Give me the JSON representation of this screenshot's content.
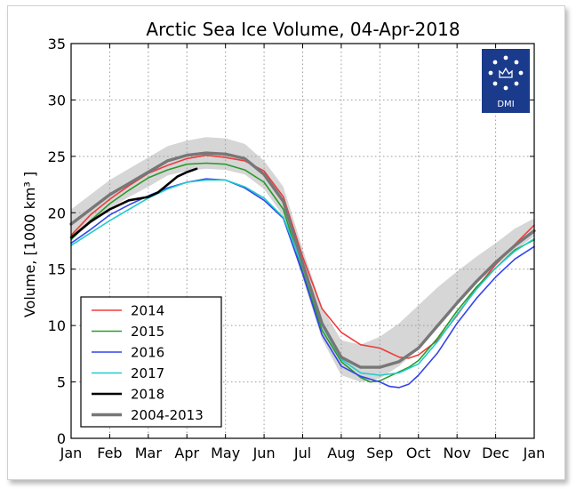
{
  "chart_data": {
    "type": "line",
    "title": "Arctic Sea Ice Volume, 04-Apr-2018",
    "ylabel": "Volume, [1000 km³ ]",
    "xlabel": "",
    "ylim": [
      0,
      35
    ],
    "yticks": [
      0,
      5,
      10,
      15,
      20,
      25,
      30,
      35
    ],
    "xlim": [
      0,
      12
    ],
    "months": [
      "Jan",
      "Feb",
      "Mar",
      "Apr",
      "May",
      "Jun",
      "Jul",
      "Aug",
      "Sep",
      "Oct",
      "Nov",
      "Dec",
      "Jan"
    ],
    "grid": true,
    "legend_position": "bottom-left",
    "logo": {
      "text": "DMI",
      "background": "#1a3a8c"
    },
    "band": {
      "x": [
        0,
        0.5,
        1,
        1.5,
        2,
        2.5,
        3,
        3.5,
        4,
        4.5,
        5,
        5.5,
        6,
        6.5,
        7,
        7.5,
        8,
        8.5,
        9,
        9.5,
        10,
        10.5,
        11,
        11.5,
        12
      ],
      "upper": [
        20.3,
        21.6,
        22.9,
        23.9,
        24.9,
        25.9,
        26.4,
        26.7,
        26.6,
        26.1,
        24.6,
        22.3,
        16.8,
        11.6,
        8.7,
        8.3,
        9.0,
        10.2,
        11.8,
        13.4,
        14.8,
        16.1,
        17.3,
        18.6,
        19.5
      ],
      "lower": [
        17.6,
        19.0,
        20.4,
        21.4,
        22.3,
        23.3,
        23.7,
        23.9,
        23.8,
        23.4,
        22.1,
        19.7,
        14.2,
        8.8,
        5.6,
        5.0,
        5.3,
        6.4,
        7.9,
        9.9,
        11.9,
        13.7,
        15.3,
        16.7,
        17.9
      ]
    },
    "series": [
      {
        "name": "2014",
        "color": "#ef3b3b",
        "width": 1.6,
        "x": [
          0,
          0.5,
          1,
          1.5,
          2,
          2.5,
          3,
          3.5,
          4,
          4.5,
          5,
          5.5,
          6,
          6.5,
          7,
          7.5,
          8,
          8.25,
          8.5,
          8.75,
          9,
          9.5,
          10,
          10.5,
          11,
          11.5,
          12
        ],
        "y": [
          18.0,
          19.8,
          21.2,
          22.4,
          23.5,
          24.2,
          24.8,
          25.1,
          24.9,
          24.6,
          23.7,
          21.4,
          16.1,
          11.5,
          9.4,
          8.3,
          8.0,
          7.6,
          7.2,
          7.1,
          7.4,
          8.7,
          10.9,
          13.3,
          15.4,
          17.2,
          18.9
        ]
      },
      {
        "name": "2015",
        "color": "#2a9a2a",
        "width": 1.6,
        "x": [
          0,
          0.5,
          1,
          1.5,
          2,
          2.5,
          3,
          3.5,
          4,
          4.5,
          5,
          5.5,
          6,
          6.5,
          7,
          7.5,
          7.75,
          8,
          8.25,
          8.5,
          8.75,
          9,
          9.5,
          10,
          10.5,
          11,
          11.5,
          12
        ],
        "y": [
          17.6,
          19.3,
          20.8,
          22.0,
          23.1,
          23.8,
          24.3,
          24.4,
          24.3,
          23.8,
          22.7,
          20.3,
          14.8,
          9.6,
          6.8,
          5.4,
          5.0,
          5.1,
          5.5,
          5.9,
          6.3,
          6.9,
          8.9,
          11.3,
          13.4,
          15.1,
          16.7,
          17.6
        ]
      },
      {
        "name": "2016",
        "color": "#3344ee",
        "width": 1.6,
        "x": [
          0,
          0.5,
          1,
          1.5,
          2,
          2.5,
          3,
          3.5,
          4,
          4.5,
          5,
          5.5,
          6,
          6.5,
          7,
          7.5,
          8,
          8.25,
          8.5,
          8.75,
          9,
          9.5,
          10,
          10.5,
          11,
          11.5,
          12
        ],
        "y": [
          17.3,
          18.5,
          19.8,
          20.7,
          21.5,
          22.2,
          22.7,
          23.0,
          22.9,
          22.2,
          21.1,
          19.5,
          14.6,
          9.2,
          6.4,
          5.5,
          5.0,
          4.6,
          4.5,
          4.8,
          5.6,
          7.6,
          10.2,
          12.4,
          14.3,
          15.9,
          17.0
        ]
      },
      {
        "name": "2017",
        "color": "#22cbcb",
        "width": 1.6,
        "x": [
          0,
          0.5,
          1,
          1.5,
          2,
          2.5,
          3,
          3.5,
          4,
          4.5,
          5,
          5.5,
          6,
          6.5,
          7,
          7.5,
          8,
          8.5,
          9,
          9.5,
          10,
          10.5,
          11,
          11.5,
          12
        ],
        "y": [
          17.1,
          18.2,
          19.3,
          20.3,
          21.3,
          22.1,
          22.7,
          22.9,
          22.9,
          22.3,
          21.3,
          19.6,
          15.2,
          10.0,
          7.0,
          5.8,
          5.6,
          5.8,
          6.6,
          8.6,
          11.0,
          13.2,
          15.1,
          16.6,
          17.7
        ]
      },
      {
        "name": "2018",
        "color": "#000000",
        "width": 2.6,
        "x": [
          0,
          0.5,
          1,
          1.5,
          2,
          2.25,
          2.5,
          2.75,
          3,
          3.25
        ],
        "y": [
          17.8,
          19.2,
          20.3,
          21.1,
          21.4,
          21.8,
          22.5,
          23.2,
          23.6,
          23.9
        ]
      },
      {
        "name": "2004-2013",
        "color": "#777777",
        "width": 3.4,
        "x": [
          0,
          0.5,
          1,
          1.5,
          2,
          2.5,
          3,
          3.5,
          4,
          4.5,
          5,
          5.5,
          6,
          6.5,
          7,
          7.5,
          8,
          8.5,
          9,
          9.5,
          10,
          10.5,
          11,
          11.5,
          12
        ],
        "y": [
          19.0,
          20.3,
          21.6,
          22.6,
          23.6,
          24.6,
          25.1,
          25.3,
          25.2,
          24.8,
          23.4,
          21.0,
          15.5,
          10.2,
          7.2,
          6.3,
          6.3,
          6.8,
          8.0,
          10.0,
          12.0,
          13.9,
          15.6,
          17.1,
          18.4
        ]
      }
    ]
  }
}
